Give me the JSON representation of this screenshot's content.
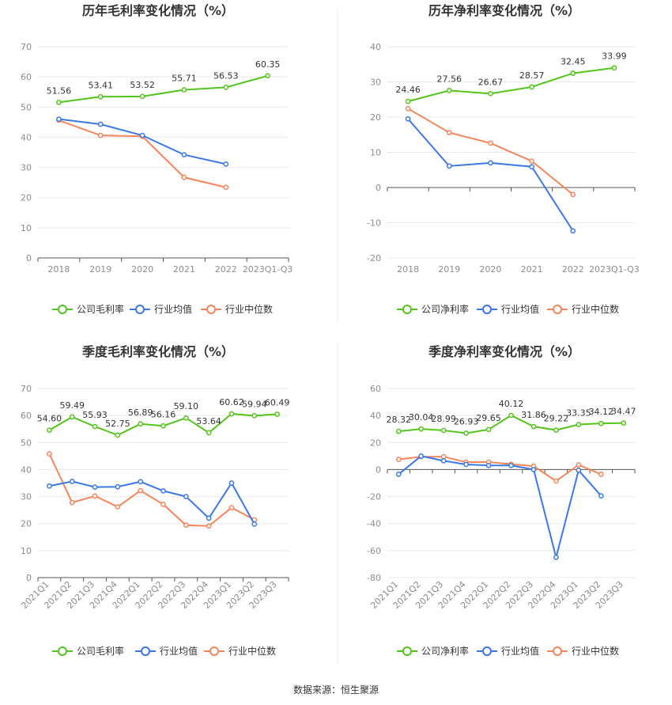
{
  "chart_data": [
    {
      "type": "line",
      "title": "历年毛利率变化情况（%）",
      "categories": [
        "2018",
        "2019",
        "2020",
        "2021",
        "2022",
        "2023Q1-Q3"
      ],
      "ylim": [
        0,
        70
      ],
      "yticks": [
        0,
        10,
        20,
        30,
        40,
        50,
        60,
        70
      ],
      "label_series": 0,
      "series": [
        {
          "name": "公司毛利率",
          "color": "#52c41a",
          "values": [
            51.56,
            53.41,
            53.52,
            55.71,
            56.53,
            60.35
          ],
          "labels": [
            "51.56",
            "53.41",
            "53.52",
            "55.71",
            "56.53",
            "60.35"
          ]
        },
        {
          "name": "行业均值",
          "color": "#3a78e6",
          "values": [
            46.0,
            44.3,
            40.6,
            34.2,
            31.1,
            null
          ]
        },
        {
          "name": "行业中位数",
          "color": "#f5855a",
          "values": [
            45.6,
            40.6,
            40.3,
            26.7,
            23.4,
            null
          ]
        }
      ]
    },
    {
      "type": "line",
      "title": "历年净利率变化情况（%）",
      "categories": [
        "2018",
        "2019",
        "2020",
        "2021",
        "2022",
        "2023Q1-Q3"
      ],
      "ylim": [
        -20,
        40
      ],
      "yticks": [
        -20,
        -10,
        0,
        10,
        20,
        30,
        40
      ],
      "label_series": 0,
      "series": [
        {
          "name": "公司净利率",
          "color": "#52c41a",
          "values": [
            24.46,
            27.56,
            26.67,
            28.57,
            32.45,
            33.99
          ],
          "labels": [
            "24.46",
            "27.56",
            "26.67",
            "28.57",
            "32.45",
            "33.99"
          ]
        },
        {
          "name": "行业均值",
          "color": "#3a78e6",
          "values": [
            19.5,
            6.1,
            7.0,
            5.9,
            -12.3,
            null
          ]
        },
        {
          "name": "行业中位数",
          "color": "#f5855a",
          "values": [
            22.4,
            15.6,
            12.6,
            7.5,
            -2.0,
            null
          ]
        }
      ]
    },
    {
      "type": "line",
      "title": "季度毛利率变化情况（%）",
      "categories": [
        "2021Q1",
        "2021Q2",
        "2021Q3",
        "2021Q4",
        "2022Q1",
        "2022Q2",
        "2022Q3",
        "2022Q4",
        "2023Q1",
        "2023Q2",
        "2023Q3"
      ],
      "ylim": [
        0,
        70
      ],
      "yticks": [
        0,
        10,
        20,
        30,
        40,
        50,
        60,
        70
      ],
      "label_series": 0,
      "series": [
        {
          "name": "公司毛利率",
          "color": "#52c41a",
          "values": [
            54.6,
            59.49,
            55.93,
            52.75,
            56.89,
            56.16,
            59.1,
            53.64,
            60.62,
            59.94,
            60.49
          ],
          "labels": [
            "54.60",
            "59.49",
            "55.93",
            "52.75",
            "56.89",
            "56.16",
            "59.10",
            "53.64",
            "60.62",
            "59.94",
            "60.49"
          ]
        },
        {
          "name": "行业均值",
          "color": "#3a78e6",
          "values": [
            33.9,
            35.6,
            33.5,
            33.6,
            35.5,
            32.1,
            30.0,
            22.0,
            35.0,
            19.8,
            null
          ]
        },
        {
          "name": "行业中位数",
          "color": "#f5855a",
          "values": [
            45.8,
            27.8,
            30.2,
            26.2,
            32.2,
            27.1,
            19.4,
            19.1,
            25.9,
            21.4,
            null
          ]
        }
      ]
    },
    {
      "type": "line",
      "title": "季度净利率变化情况（%）",
      "categories": [
        "2021Q1",
        "2021Q2",
        "2021Q3",
        "2021Q4",
        "2022Q1",
        "2022Q2",
        "2022Q3",
        "2022Q4",
        "2023Q1",
        "2023Q2",
        "2023Q3"
      ],
      "ylim": [
        -80,
        60
      ],
      "yticks": [
        -80,
        -60,
        -40,
        -20,
        0,
        20,
        40,
        60
      ],
      "label_series": 0,
      "series": [
        {
          "name": "公司净利率",
          "color": "#52c41a",
          "values": [
            28.32,
            30.04,
            28.99,
            26.93,
            29.65,
            40.12,
            31.86,
            29.22,
            33.35,
            34.12,
            34.47
          ],
          "labels": [
            "28.32",
            "30.04",
            "28.99",
            "26.93",
            "29.65",
            "40.12",
            "31.86",
            "29.22",
            "33.35",
            "34.12",
            "34.47"
          ]
        },
        {
          "name": "行业均值",
          "color": "#3a78e6",
          "values": [
            -3.5,
            10.0,
            6.5,
            3.8,
            3.0,
            3.0,
            0.0,
            -65.0,
            -0.5,
            -19.5,
            null
          ]
        },
        {
          "name": "行业中位数",
          "color": "#f5855a",
          "values": [
            7.5,
            9.5,
            9.5,
            5.5,
            5.5,
            4.0,
            2.5,
            -8.5,
            3.5,
            -3.5,
            null
          ]
        }
      ]
    }
  ],
  "source": "数据来源：恒生聚源"
}
